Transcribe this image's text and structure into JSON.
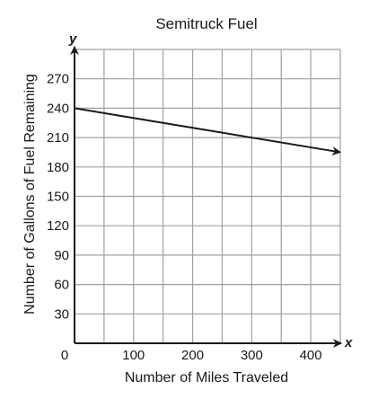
{
  "chart_data": {
    "type": "line",
    "title": "Semitruck Fuel",
    "xlabel": "Number of Miles Traveled",
    "ylabel": "Number of Gallons of Fuel Remaining",
    "x_axis_variable": "x",
    "y_axis_variable": "y",
    "xlim": [
      0,
      450
    ],
    "ylim": [
      0,
      300
    ],
    "x_ticks": [
      100,
      200,
      300,
      400
    ],
    "y_ticks": [
      30,
      60,
      90,
      120,
      150,
      180,
      210,
      240,
      270
    ],
    "origin_label": "0",
    "x_grid_step": 50,
    "y_grid_step": 30,
    "grid": true,
    "legend": "none",
    "line_color": "#1a1a1a",
    "grid_color": "#a0a0a0",
    "line_arrow_end": true,
    "series": [
      {
        "x": [
          0,
          450
        ],
        "y": [
          240,
          195
        ]
      }
    ]
  }
}
